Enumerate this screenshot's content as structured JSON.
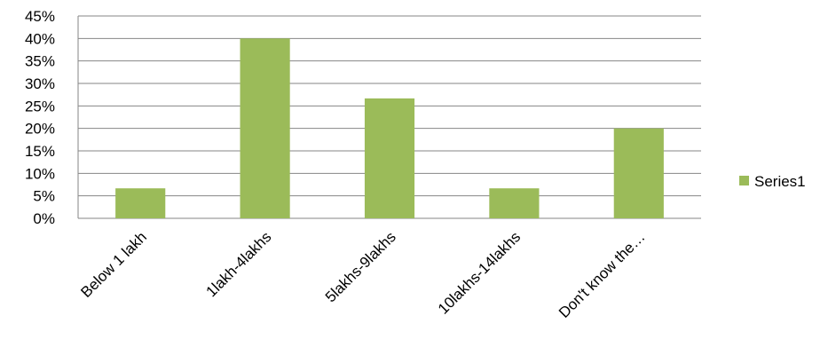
{
  "chart_data": {
    "type": "bar",
    "categories": [
      "Below 1 lakh",
      "1lakh-4lakhs",
      "5lakhs-9lakhs",
      "10lakhs-14lakhs",
      "Don't know the…"
    ],
    "series": [
      {
        "name": "Series1",
        "values": [
          0.0667,
          0.4,
          0.2667,
          0.0667,
          0.2
        ],
        "color": "#9BBB59"
      }
    ],
    "ylim": [
      0,
      0.45
    ],
    "yticks": [
      0,
      0.05,
      0.1,
      0.15,
      0.2,
      0.25,
      0.3,
      0.35,
      0.4,
      0.45
    ],
    "ytick_labels": [
      "0%",
      "5%",
      "10%",
      "15%",
      "20%",
      "25%",
      "30%",
      "35%",
      "40%",
      "45%"
    ],
    "title": "",
    "xlabel": "",
    "ylabel": "",
    "grid": true,
    "legend_position": "right",
    "gridline_color": "#868686"
  }
}
